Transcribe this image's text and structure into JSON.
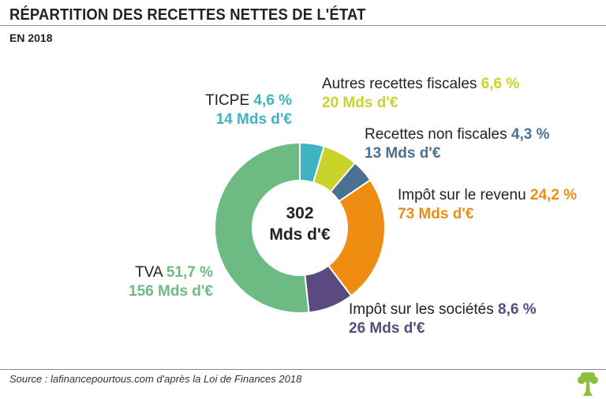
{
  "header": {
    "title": "RÉPARTITION DES RECETTES NETTES DE L'ÉTAT",
    "subtitle": "EN 2018"
  },
  "chart_data": {
    "type": "pie",
    "variant": "donut",
    "total_line1": "302",
    "total_line2": "Mds d'€",
    "slices": [
      {
        "name": "TICPE",
        "percent": 4.6,
        "percent_label": "4,6 %",
        "amount_label": "14 Mds d'€",
        "color": "#3fb3c0"
      },
      {
        "name": "Autres recettes fiscales",
        "percent": 6.6,
        "percent_label": "6,6 %",
        "amount_label": "20 Mds d'€",
        "color": "#c9d32a"
      },
      {
        "name": "Recettes non fiscales",
        "percent": 4.3,
        "percent_label": "4,3 %",
        "amount_label": "13 Mds d'€",
        "color": "#4a7191"
      },
      {
        "name": "Impôt sur le revenu",
        "percent": 24.2,
        "percent_label": "24,2 %",
        "amount_label": "73 Mds d'€",
        "color": "#ef8c12"
      },
      {
        "name": "Impôt sur les sociétés",
        "percent": 8.6,
        "percent_label": "8,6 %",
        "amount_label": "26 Mds d'€",
        "color": "#5a4a80"
      },
      {
        "name": "TVA",
        "percent": 51.7,
        "percent_label": "51,7 %",
        "amount_label": "156 Mds d'€",
        "color": "#6dbb82"
      }
    ]
  },
  "footer": {
    "source": "Source : lafinancepourtous.com d'après la Loi de Finances 2018",
    "logo": "tree-icon",
    "logo_color": "#8cbf3f"
  }
}
